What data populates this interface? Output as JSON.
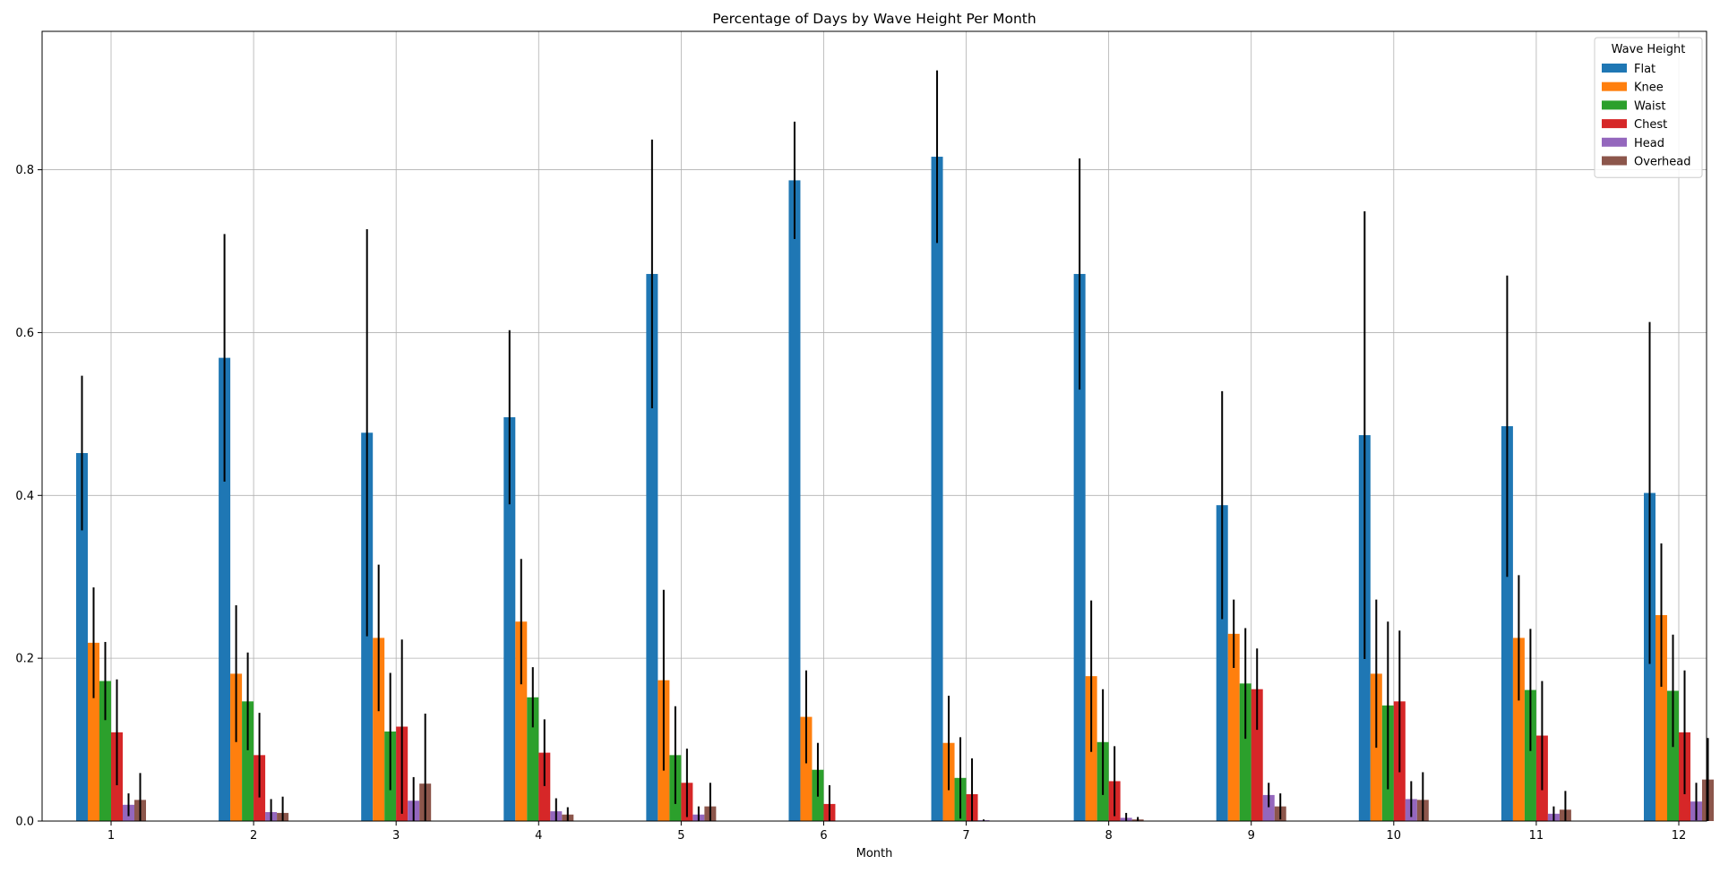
{
  "chart_data": {
    "type": "bar",
    "title": "Percentage of Days by Wave Height Per Month",
    "xlabel": "Month",
    "ylabel": "",
    "categories": [
      "1",
      "2",
      "3",
      "4",
      "5",
      "6",
      "7",
      "8",
      "9",
      "10",
      "11",
      "12"
    ],
    "ylim": [
      0,
      0.97
    ],
    "yticks": [
      "0.0",
      "0.2",
      "0.4",
      "0.6",
      "0.8"
    ],
    "grid": true,
    "error_bars": true,
    "legend": {
      "title": "Wave Height",
      "placement": "top-right"
    },
    "series": [
      {
        "name": "Flat",
        "color": "#1f77b4",
        "values": [
          0.452,
          0.569,
          0.477,
          0.496,
          0.672,
          0.787,
          0.816,
          0.672,
          0.388,
          0.474,
          0.485,
          0.403
        ],
        "errors": [
          0.095,
          0.152,
          0.25,
          0.107,
          0.165,
          0.072,
          0.106,
          0.142,
          0.14,
          0.275,
          0.185,
          0.21
        ]
      },
      {
        "name": "Knee",
        "color": "#ff7f0e",
        "values": [
          0.219,
          0.181,
          0.225,
          0.245,
          0.173,
          0.128,
          0.096,
          0.178,
          0.23,
          0.181,
          0.225,
          0.253
        ],
        "errors": [
          0.068,
          0.084,
          0.09,
          0.077,
          0.111,
          0.057,
          0.058,
          0.093,
          0.042,
          0.091,
          0.077,
          0.088
        ]
      },
      {
        "name": "Waist",
        "color": "#2ca02c",
        "values": [
          0.172,
          0.147,
          0.11,
          0.152,
          0.081,
          0.063,
          0.053,
          0.097,
          0.169,
          0.142,
          0.161,
          0.16
        ],
        "errors": [
          0.048,
          0.06,
          0.072,
          0.037,
          0.06,
          0.033,
          0.05,
          0.065,
          0.068,
          0.103,
          0.075,
          0.069
        ]
      },
      {
        "name": "Chest",
        "color": "#d62728",
        "values": [
          0.109,
          0.081,
          0.116,
          0.084,
          0.047,
          0.021,
          0.033,
          0.049,
          0.162,
          0.147,
          0.105,
          0.109
        ],
        "errors": [
          0.065,
          0.052,
          0.107,
          0.041,
          0.042,
          0.023,
          0.044,
          0.043,
          0.05,
          0.087,
          0.067,
          0.076
        ]
      },
      {
        "name": "Head",
        "color": "#9467bd",
        "values": [
          0.02,
          0.011,
          0.025,
          0.012,
          0.008,
          0.0,
          0.001,
          0.004,
          0.032,
          0.027,
          0.009,
          0.024
        ],
        "errors": [
          0.014,
          0.016,
          0.029,
          0.016,
          0.01,
          0.0,
          0.001,
          0.006,
          0.015,
          0.022,
          0.009,
          0.023
        ]
      },
      {
        "name": "Overhead",
        "color": "#8c564b",
        "values": [
          0.026,
          0.01,
          0.046,
          0.008,
          0.018,
          0.0,
          0.0,
          0.002,
          0.018,
          0.026,
          0.014,
          0.051
        ],
        "errors": [
          0.033,
          0.02,
          0.086,
          0.009,
          0.029,
          0.0,
          0.0,
          0.003,
          0.016,
          0.034,
          0.023,
          0.051
        ]
      }
    ]
  }
}
